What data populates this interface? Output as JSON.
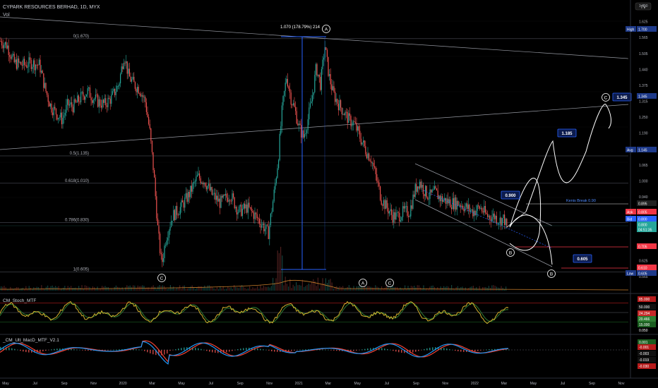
{
  "header": {
    "symbol_title": "CYPARK RESOURCES BERHAD, 1D, MYX",
    "volume_label": "Vol",
    "logo_text": "TV"
  },
  "colors": {
    "background": "#000000",
    "candle_up": "#26a69a",
    "candle_down": "#ef5350",
    "trendline": "#9598a1",
    "fib_line": "#5d606b",
    "measure": "#2962ff",
    "projection": "#ffffff",
    "hline_red": "#f23645",
    "stoch_line": "#d4b22e",
    "stoch_fill": "#2e7d32",
    "macd_fast": "#2196f3",
    "macd_slow": "#f44336",
    "axis_text": "#b2b5be"
  },
  "chart_data": [
    {
      "type": "candlestick",
      "title": "CYPARK RESOURCES BERHAD, 1D, MYX",
      "x_tick_labels": [
        "May",
        "Jul",
        "Sep",
        "Nov",
        "2020",
        "Mar",
        "May",
        "Jul",
        "Sep",
        "Nov",
        "2021",
        "Mar",
        "May",
        "Jul",
        "Sep",
        "Nov",
        "2022",
        "Mar",
        "May",
        "Jul",
        "Sep",
        "Nov"
      ],
      "y_tick_labels": [
        "1.750",
        "1.625",
        "1.565",
        "1.505",
        "1.440",
        "1.375",
        "1.315",
        "1.250",
        "1.190",
        "1.125",
        "1.065",
        "1.000",
        "0.940",
        "0.875",
        "0.750",
        "0.690",
        "0.625",
        "0.565"
      ],
      "ylim": [
        0.565,
        1.75
      ],
      "price_path": [
        [
          0,
          1.66
        ],
        [
          10,
          1.64
        ],
        [
          20,
          1.56
        ],
        [
          34,
          1.55
        ],
        [
          44,
          1.56
        ],
        [
          56,
          1.55
        ],
        [
          64,
          1.44
        ],
        [
          72,
          1.36
        ],
        [
          80,
          1.33
        ],
        [
          88,
          1.3
        ],
        [
          96,
          1.37
        ],
        [
          104,
          1.36
        ],
        [
          114,
          1.4
        ],
        [
          124,
          1.43
        ],
        [
          132,
          1.4
        ],
        [
          140,
          1.38
        ],
        [
          148,
          1.37
        ],
        [
          158,
          1.4
        ],
        [
          168,
          1.46
        ],
        [
          176,
          1.6
        ],
        [
          182,
          1.5
        ],
        [
          190,
          1.46
        ],
        [
          198,
          1.44
        ],
        [
          206,
          1.38
        ],
        [
          212,
          1.25
        ],
        [
          218,
          1.05
        ],
        [
          224,
          0.78
        ],
        [
          229,
          0.64
        ],
        [
          235,
          0.76
        ],
        [
          244,
          0.86
        ],
        [
          256,
          0.9
        ],
        [
          268,
          0.96
        ],
        [
          280,
          1.04
        ],
        [
          290,
          1.02
        ],
        [
          300,
          0.96
        ],
        [
          312,
          0.92
        ],
        [
          326,
          0.96
        ],
        [
          338,
          0.88
        ],
        [
          350,
          0.9
        ],
        [
          362,
          0.86
        ],
        [
          372,
          0.82
        ],
        [
          380,
          0.78
        ],
        [
          388,
          0.96
        ],
        [
          394,
          1.12
        ],
        [
          400,
          1.36
        ],
        [
          406,
          1.5
        ],
        [
          412,
          1.4
        ],
        [
          418,
          1.34
        ],
        [
          424,
          1.26
        ],
        [
          430,
          1.22
        ],
        [
          436,
          1.3
        ],
        [
          442,
          1.4
        ],
        [
          448,
          1.54
        ],
        [
          454,
          1.46
        ],
        [
          460,
          1.64
        ],
        [
          466,
          1.5
        ],
        [
          472,
          1.42
        ],
        [
          478,
          1.38
        ],
        [
          486,
          1.34
        ],
        [
          494,
          1.3
        ],
        [
          502,
          1.28
        ],
        [
          510,
          1.22
        ],
        [
          518,
          1.16
        ],
        [
          526,
          1.12
        ],
        [
          534,
          1.02
        ],
        [
          540,
          0.94
        ],
        [
          548,
          0.9
        ],
        [
          556,
          0.86
        ],
        [
          564,
          0.86
        ],
        [
          572,
          0.88
        ],
        [
          580,
          0.88
        ],
        [
          588,
          0.98
        ],
        [
          594,
          1.02
        ],
        [
          600,
          0.98
        ],
        [
          608,
          0.95
        ],
        [
          616,
          0.97
        ],
        [
          624,
          0.94
        ],
        [
          632,
          0.93
        ],
        [
          640,
          0.92
        ],
        [
          650,
          0.92
        ],
        [
          660,
          0.9
        ],
        [
          670,
          0.88
        ],
        [
          680,
          0.9
        ],
        [
          690,
          0.86
        ],
        [
          700,
          0.86
        ],
        [
          708,
          0.84
        ],
        [
          714,
          0.85
        ],
        [
          718,
          0.8
        ]
      ],
      "annotations": {
        "fib_levels": [
          {
            "label": "0(1.670)",
            "value": 1.67
          },
          {
            "label": "0.5(1.135)",
            "value": 1.135
          },
          {
            "label": "0.618(1.010)",
            "value": 1.01
          },
          {
            "label": "0.786(0.830)",
            "value": 0.83
          },
          {
            "label": "1(0.605)",
            "value": 0.605
          }
        ],
        "measure_label": "1.070 (178.79%) 214",
        "wave_labels": [
          "A",
          "C",
          "C",
          "B",
          "B",
          "A",
          "C"
        ],
        "projection_targets": [
          "0.900",
          "1.185",
          "1.345",
          "0.605"
        ],
        "kenis_break_label": "Kenis Break 0.90"
      },
      "price_labels": [
        {
          "text": "High",
          "value": "1.700",
          "color": "#1e3a8a"
        },
        {
          "text": "",
          "value": "1.345",
          "color": "#1e3a8a"
        },
        {
          "text": "Avg",
          "value": "1.145",
          "color": "#1e3a8a"
        },
        {
          "text": "",
          "value": "0.895",
          "color": "#222222"
        },
        {
          "text": "Ask",
          "value": "0.805",
          "color": "#f23645"
        },
        {
          "text": "Bid",
          "value": "0.800",
          "color": "#2962ff"
        },
        {
          "text": "",
          "value": "0.800",
          "color": "#26a69a"
        },
        {
          "text": "",
          "value": "04:51:35",
          "color": "#26a69a"
        },
        {
          "text": "",
          "value": "0.705",
          "color": "#f23645"
        },
        {
          "text": "",
          "value": "0.610",
          "color": "#f23645"
        },
        {
          "text": "Low",
          "value": "0.605",
          "color": "#1e3a8a"
        }
      ]
    },
    {
      "type": "line",
      "title": "CM_Stoch_MTF",
      "y_tick_labels": [
        "85.000",
        "50.000",
        "24.294",
        "20.466",
        "15.000",
        "0.050"
      ],
      "levels": [
        85,
        50,
        15
      ]
    },
    {
      "type": "line",
      "title": "_CM_Ult_MacD_MTF_V2.1",
      "y_tick_labels": [
        "0.001",
        "-0.001",
        "-0.003",
        "-0.019",
        "-0.030"
      ]
    }
  ]
}
